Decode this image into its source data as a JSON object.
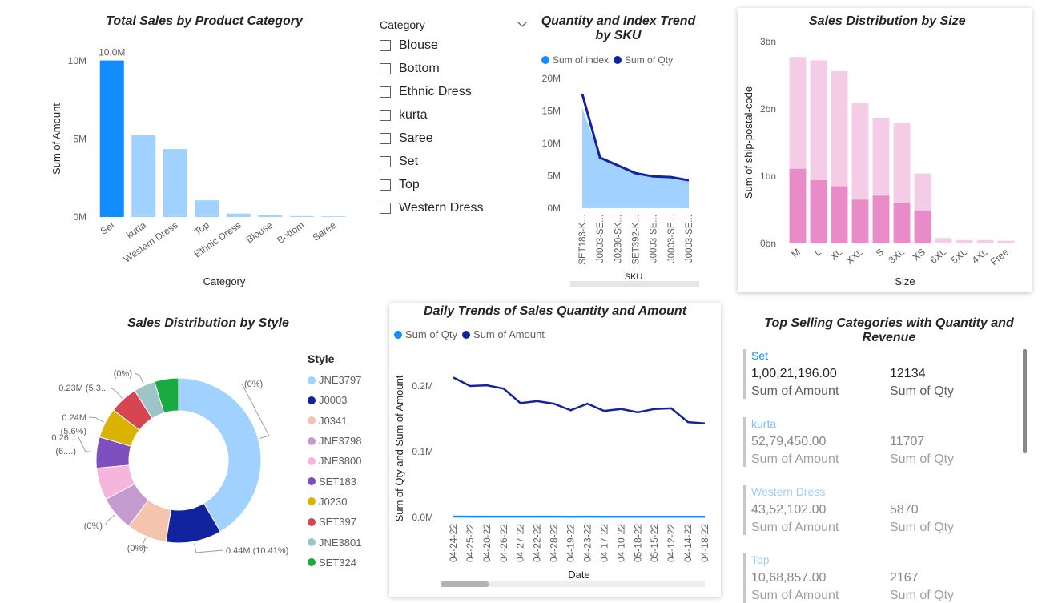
{
  "colors": {
    "accent_blue": "#118DFF",
    "light_blue": "#A0D1FF",
    "navy": "#12239E",
    "pink_dark": "#E98BC8",
    "pink_light": "#F5CCE6"
  },
  "slicer": {
    "header": "Category",
    "items": [
      "Blouse",
      "Bottom",
      "Ethnic Dress",
      "kurta",
      "Saree",
      "Set",
      "Top",
      "Western Dress"
    ]
  },
  "chart_data": [
    {
      "id": "category",
      "type": "bar",
      "title": "Total Sales by Product Category",
      "xlabel": "Category",
      "ylabel": "Sum of Amount",
      "categories": [
        "Set",
        "kurta",
        "Western Dress",
        "Top",
        "Ethnic Dress",
        "Blouse",
        "Bottom",
        "Saree"
      ],
      "values": [
        10021196,
        5279450,
        4352102,
        1068857,
        220000,
        120000,
        60000,
        40000
      ],
      "yticks": [
        "0M",
        "5M",
        "10M"
      ],
      "ylim": [
        0,
        10000000
      ],
      "data_labels": [
        "10.0M"
      ],
      "highlight_index": 0
    },
    {
      "id": "sku",
      "type": "area",
      "title": "Quantity and Index Trend by SKU",
      "xlabel": "SKU",
      "categories": [
        "SET183-K...",
        "J0003-SE...",
        "J0230-SK...",
        "SET392-K...",
        "J0003-SE...",
        "J0003-SE...",
        "J0003-SE..."
      ],
      "yticks": [
        "0M",
        "5M",
        "10M",
        "15M",
        "20M"
      ],
      "ylim": [
        0,
        20000000
      ],
      "series": [
        {
          "name": "Sum of index",
          "type": "area",
          "values": [
            15500000,
            7800000,
            6600000,
            5300000,
            4900000,
            4800000,
            4200000
          ]
        },
        {
          "name": "Sum of Qty",
          "type": "line",
          "values": [
            17600000,
            7800000,
            6600000,
            5400000,
            4900000,
            4800000,
            4300000
          ]
        }
      ],
      "legend": "top-left"
    },
    {
      "id": "size",
      "type": "bar",
      "title": "Sales Distribution by Size",
      "xlabel": "Size",
      "ylabel": "Sum of ship-postal-code",
      "categories": [
        "M",
        "L",
        "XL",
        "XXL",
        "S",
        "3XL",
        "XS",
        "6XL",
        "5XL",
        "4XL",
        "Free"
      ],
      "yticks": [
        "0bn",
        "1bn",
        "2bn",
        "3bn"
      ],
      "ylim": [
        0,
        3000000000
      ],
      "series": [
        {
          "values": [
            1110000000,
            940000000,
            850000000,
            650000000,
            710000000,
            600000000,
            490000000,
            0,
            0,
            0,
            0
          ]
        },
        {
          "values": [
            2770000000,
            2720000000,
            2560000000,
            2090000000,
            1870000000,
            1790000000,
            1040000000,
            80000000,
            50000000,
            50000000,
            40000000
          ]
        }
      ]
    },
    {
      "id": "style",
      "type": "pie",
      "title": "Sales Distribution by Style",
      "legend_title": "Style",
      "legend": [
        "JNE3797",
        "J0003",
        "J0341",
        "JNE3798",
        "JNE3800",
        "SET183",
        "J0230",
        "SET397",
        "JNE3801",
        "SET324"
      ],
      "slice_colors": [
        "#A0D1FF",
        "#12239E",
        "#F5C4AF",
        "#C49BCF",
        "#F5B5DD",
        "#7E4FBE",
        "#D9B300",
        "#D64550",
        "#9FC4C8",
        "#1AAB40"
      ],
      "values": [
        39.5,
        10.41,
        7.5,
        6.5,
        6.0,
        5.8,
        5.6,
        5.3,
        4.0,
        4.5
      ],
      "data_labels": [
        "(0%)",
        "0.44M (10.41%)",
        "(0%)",
        "(0%)",
        "",
        "0.26...",
        "0.24M",
        "0.23M (5.3...",
        "(0%)",
        ""
      ],
      "data_labels_2": [
        "",
        "",
        "",
        "",
        "",
        "(6....)",
        "(5.6%)",
        "",
        "",
        ""
      ]
    },
    {
      "id": "daily",
      "type": "line",
      "title": "Daily Trends of Sales Quantity and Amount",
      "xlabel": "Date",
      "ylabel": "Sum of Qty and Sum of Amount",
      "categories": [
        "04-24-22",
        "04-25-22",
        "04-20-22",
        "04-26-22",
        "04-27-22",
        "04-22-22",
        "04-28-22",
        "04-19-22",
        "04-23-22",
        "04-17-22",
        "04-10-22",
        "05-18-22",
        "05-15-22",
        "04-12-22",
        "04-14-22",
        "04-18-22"
      ],
      "yticks": [
        "0.0M",
        "0.1M",
        "0.2M"
      ],
      "ylim": [
        0,
        200000
      ],
      "series": [
        {
          "name": "Sum of Qty",
          "values": [
            1200,
            1100,
            1100,
            1100,
            1000,
            1000,
            1000,
            950,
            1000,
            950,
            950,
            950,
            950,
            950,
            850,
            850
          ]
        },
        {
          "name": "Sum of Amount",
          "values": [
            213000,
            200000,
            201000,
            196000,
            174000,
            177000,
            173000,
            163000,
            173000,
            162000,
            165000,
            160000,
            165000,
            166000,
            145000,
            143000
          ]
        }
      ],
      "legend": "top-left"
    }
  ],
  "titles": {
    "category": "Total Sales by Product Category",
    "sku": "Quantity and Index Trend by SKU",
    "size": "Sales Distribution by Size",
    "style": "Sales Distribution by Style",
    "daily": "Daily Trends of Sales Quantity and Amount",
    "top": "Top Selling Categories with Quantity and Revenue"
  },
  "legends": {
    "sku_index": "Sum of index",
    "sku_qty": "Sum of Qty",
    "daily_qty": "Sum of Qty",
    "daily_amount": "Sum of Amount"
  },
  "top_categories": {
    "amount_label": "Sum of Amount",
    "qty_label": "Sum of Qty",
    "rows": [
      {
        "category": "Set",
        "amount": "1,00,21,196.00",
        "qty": "12134"
      },
      {
        "category": "kurta",
        "amount": "52,79,450.00",
        "qty": "11707"
      },
      {
        "category": "Western Dress",
        "amount": "43,52,102.00",
        "qty": "5870"
      },
      {
        "category": "Top",
        "amount": "10,68,857.00",
        "qty": "2167"
      }
    ]
  }
}
